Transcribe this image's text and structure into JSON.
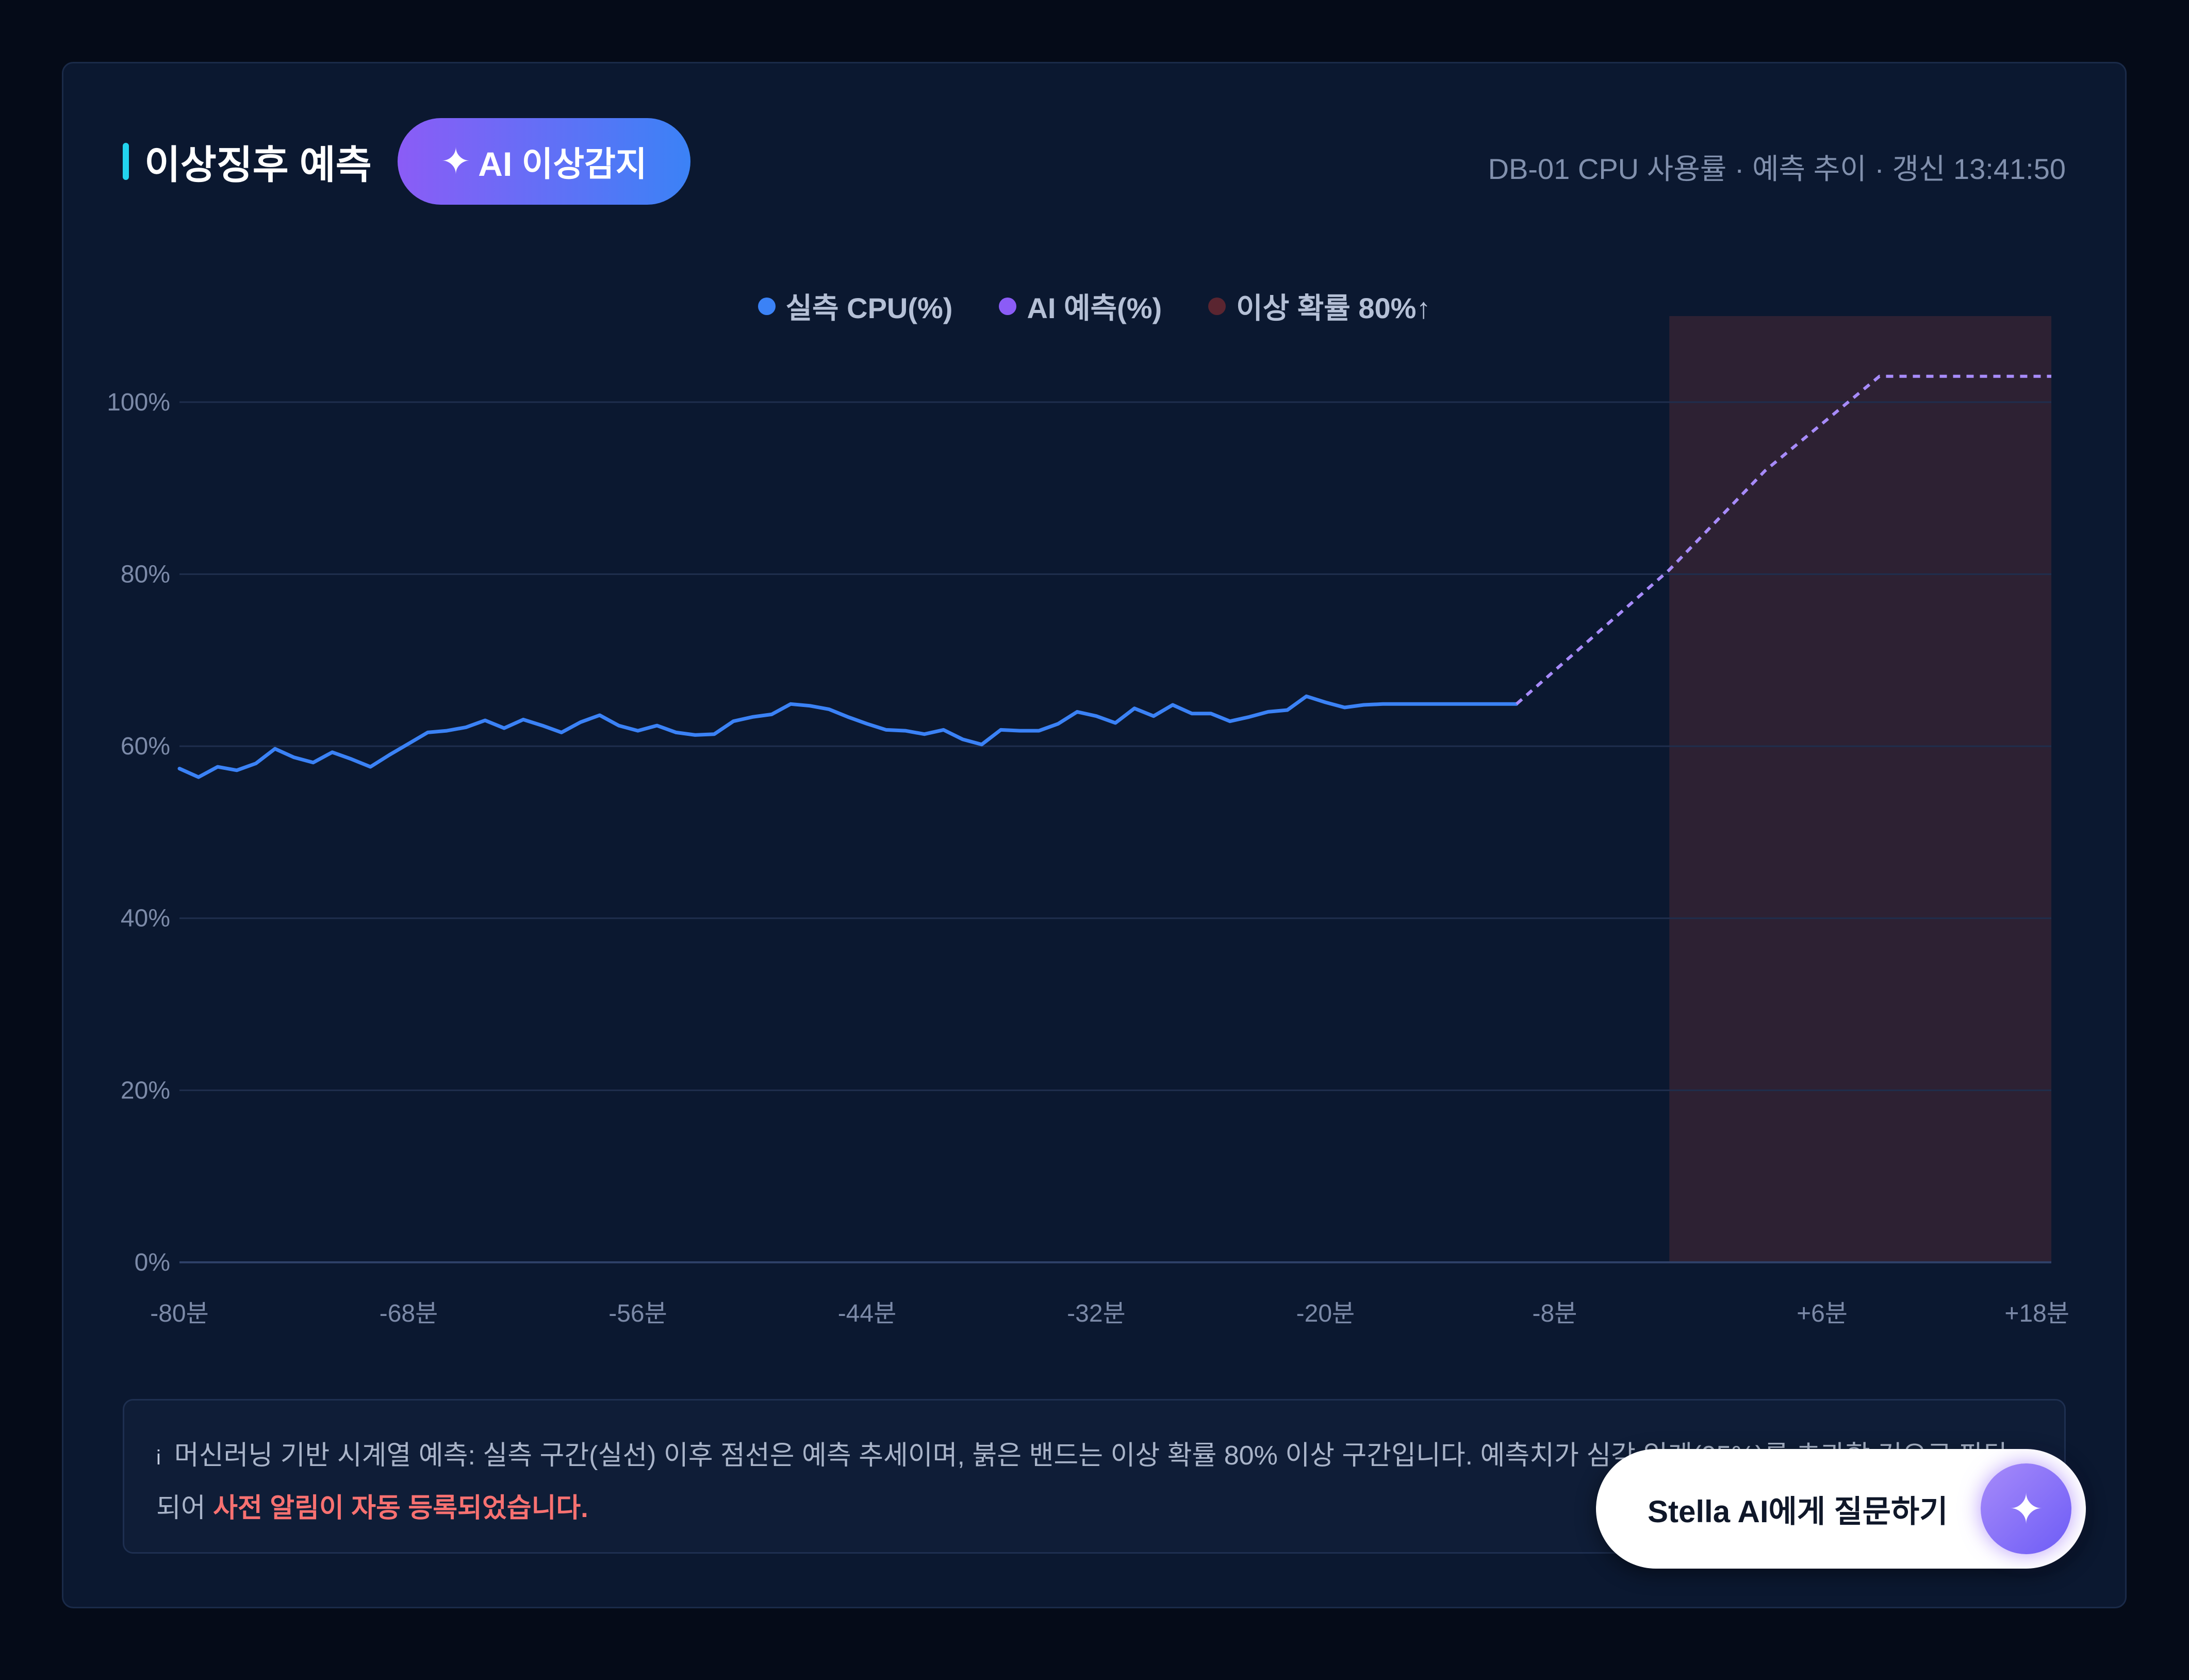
{
  "header": {
    "title": "이상징후 예측",
    "ai_badge": "AI 이상감지",
    "subtitle": "DB-01 CPU 사용률 · 예측 추이 · 갱신 13:41:50"
  },
  "note": {
    "info_icon": "i",
    "text": "머신러닝 기반 시계열 예측: 실측 구간(실선) 이후 점선은 예측 추세이며, 붉은 밴드는 이상 확률 80% 이상 구간입니다. 예측치가 심각 임계(95%)를 초과할 것으로 판단되어 ",
    "alert": "사전 알림이 자동 등록되었습니다."
  },
  "ask": {
    "label": "Stella AI에게 질문하기"
  },
  "colors": {
    "actual": "#3b82f6",
    "forecast": "#a78bfa",
    "band": "#2d2133",
    "accent": "#22d3ee"
  },
  "chart_data": {
    "type": "line",
    "legend": [
      {
        "label": "실측 CPU(%)",
        "color": "#3b82f6"
      },
      {
        "label": "AI 예측(%)",
        "color": "#8b5cf6"
      },
      {
        "label": "이상 확률 80%↑",
        "color": "#5a2530"
      }
    ],
    "xlim": [
      -80,
      18
    ],
    "ylim": [
      0,
      110
    ],
    "yticks": [
      0,
      20,
      40,
      60,
      80,
      100
    ],
    "ytick_labels": [
      "0%",
      "20%",
      "40%",
      "60%",
      "80%",
      "100%"
    ],
    "xticks": [
      -80,
      -68,
      -56,
      -44,
      -32,
      -20,
      -8,
      6,
      18
    ],
    "xtick_labels": [
      "-80분",
      "-68분",
      "-56분",
      "-44분",
      "-32분",
      "-20분",
      "-8분",
      "+6분",
      "+18분"
    ],
    "grid": true,
    "series": [
      {
        "name": "실측 CPU(%)",
        "style": "solid",
        "x": [
          -80,
          -79,
          -78,
          -77,
          -76,
          -75,
          -74,
          -73,
          -72,
          -71,
          -70,
          -69,
          -68,
          -67,
          -66,
          -65,
          -64,
          -63,
          -62,
          -61,
          -60,
          -59,
          -58,
          -57,
          -56,
          -55,
          -54,
          -53,
          -52,
          -51,
          -50,
          -49,
          -48,
          -47,
          -46,
          -45,
          -44,
          -43,
          -42,
          -41,
          -40,
          -39,
          -38,
          -37,
          -36,
          -35,
          -34,
          -33,
          -32,
          -31,
          -30,
          -29,
          -28,
          -27,
          -26,
          -25,
          -24,
          -23,
          -22,
          -21,
          -20,
          -19,
          -18,
          -17,
          -16,
          -15,
          -14,
          -13,
          -12,
          -11,
          -10
        ],
        "y": [
          57.4,
          56.4,
          57.6,
          57.2,
          58.0,
          59.7,
          58.7,
          58.1,
          59.3,
          58.5,
          57.6,
          59.0,
          60.3,
          61.6,
          61.8,
          62.2,
          63.0,
          62.1,
          63.1,
          62.4,
          61.6,
          62.8,
          63.6,
          62.4,
          61.8,
          62.4,
          61.6,
          61.3,
          61.4,
          62.9,
          63.4,
          63.7,
          64.9,
          64.7,
          64.3,
          63.4,
          62.6,
          61.9,
          61.8,
          61.4,
          61.9,
          60.8,
          60.2,
          61.9,
          61.8,
          61.8,
          62.6,
          64.0,
          63.5,
          62.7,
          64.4,
          63.5,
          64.8,
          63.8,
          63.8,
          62.9,
          63.4,
          64.0,
          64.2,
          65.8,
          65.1,
          64.5,
          64.8,
          64.9,
          64.9,
          64.9,
          64.9,
          64.9,
          64.9,
          64.9,
          64.9
        ]
      },
      {
        "name": "AI 예측(%)",
        "style": "dashed",
        "x": [
          -10,
          -2,
          3,
          9,
          18
        ],
        "y": [
          64.9,
          80.5,
          92,
          103,
          103
        ]
      }
    ],
    "bands": [
      {
        "name": "이상 확률 80%↑",
        "x_from": -2,
        "x_to": 18
      }
    ]
  }
}
